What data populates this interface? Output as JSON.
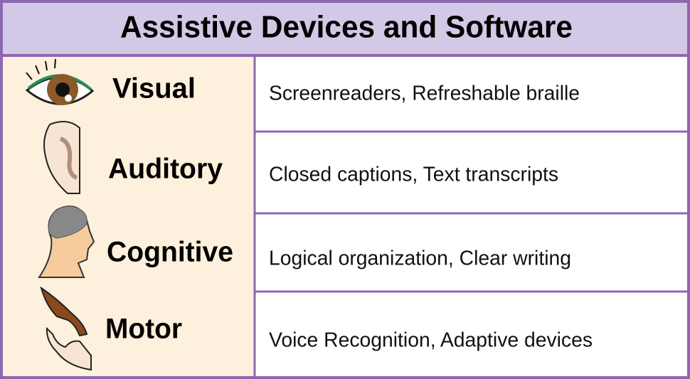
{
  "header": {
    "title": "Assistive Devices and Software"
  },
  "table": {
    "rows": [
      {
        "category": "Visual",
        "description": "Screenreaders, Refreshable braille"
      },
      {
        "category": "Auditory",
        "description": "Closed captions, Text transcripts"
      },
      {
        "category": "Cognitive",
        "description": "Logical organization, Clear writing"
      },
      {
        "category": "Motor",
        "description": "Voice Recognition, Adaptive devices"
      }
    ]
  }
}
